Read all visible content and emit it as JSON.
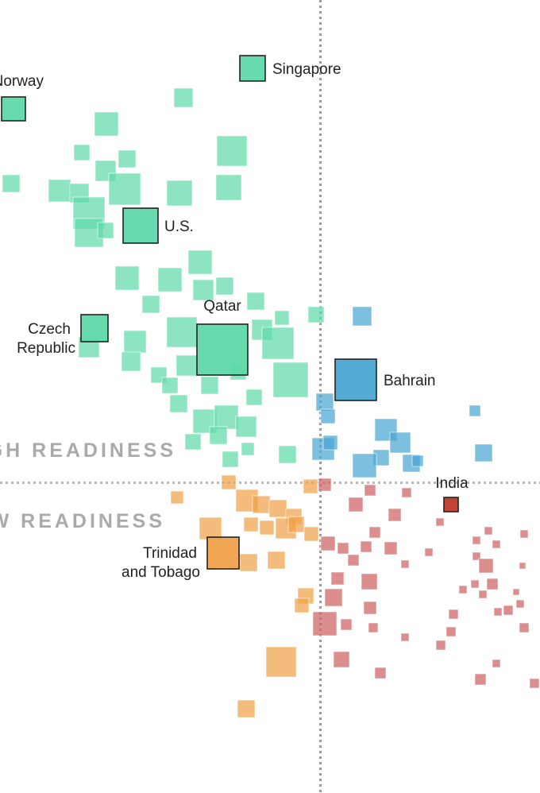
{
  "chart_data": {
    "type": "scatter",
    "marker": "square",
    "grid": false,
    "reference_lines": {
      "x": 0,
      "y": 0,
      "style": "dotted",
      "color": "#9a9a9a"
    },
    "quadrant_labels": [
      "HIGH READINESS",
      "LOW READINESS"
    ],
    "colors": {
      "green": "#5fd9a9",
      "blue": "#4aa6d1",
      "orange": "#f0a24a",
      "red": "#cf6363",
      "india": "#c0392b"
    },
    "highlighted": [
      {
        "label": "Norway",
        "group": "green",
        "x": -386,
        "y": 470,
        "s": 30
      },
      {
        "label": "Singapore",
        "group": "green",
        "x": -85,
        "y": 521,
        "s": 32
      },
      {
        "label": "U.S.",
        "group": "green",
        "x": -226,
        "y": 323,
        "s": 44
      },
      {
        "label": "Czech Republic",
        "group": "green",
        "x": -284,
        "y": 194,
        "s": 34
      },
      {
        "label": "Qatar",
        "group": "green",
        "x": -123,
        "y": 167,
        "s": 64
      },
      {
        "label": "Bahrain",
        "group": "blue",
        "x": 45,
        "y": 129,
        "s": 52
      },
      {
        "label": "India",
        "group": "india",
        "x": 165,
        "y": -28,
        "s": 18
      },
      {
        "label": "Trinidad and Tobago",
        "group": "orange",
        "x": -122,
        "y": -89,
        "s": 40
      }
    ],
    "points": {
      "green": [
        [
          -172,
          484,
          24
        ],
        [
          -269,
          451,
          30
        ],
        [
          -300,
          415,
          20
        ],
        [
          -243,
          407,
          22
        ],
        [
          -270,
          392,
          26
        ],
        [
          -111,
          417,
          38
        ],
        [
          -389,
          376,
          22
        ],
        [
          -328,
          367,
          28
        ],
        [
          -303,
          364,
          24
        ],
        [
          -246,
          369,
          40
        ],
        [
          -177,
          364,
          32
        ],
        [
          -115,
          371,
          32
        ],
        [
          -291,
          339,
          40
        ],
        [
          -291,
          314,
          36
        ],
        [
          -270,
          317,
          20
        ],
        [
          -151,
          277,
          30
        ],
        [
          -243,
          257,
          30
        ],
        [
          -189,
          255,
          30
        ],
        [
          -147,
          242,
          26
        ],
        [
          -120,
          247,
          22
        ],
        [
          -213,
          224,
          22
        ],
        [
          -81,
          228,
          22
        ],
        [
          -174,
          189,
          38
        ],
        [
          -233,
          177,
          28
        ],
        [
          -291,
          170,
          26
        ],
        [
          -238,
          152,
          24
        ],
        [
          -203,
          135,
          20
        ],
        [
          -189,
          122,
          20
        ],
        [
          -73,
          192,
          26
        ],
        [
          -48,
          207,
          18
        ],
        [
          -53,
          175,
          40
        ],
        [
          -37,
          129,
          44
        ],
        [
          -139,
          122,
          22
        ],
        [
          -103,
          139,
          20
        ],
        [
          -168,
          147,
          26
        ],
        [
          -83,
          107,
          20
        ],
        [
          -178,
          99,
          22
        ],
        [
          -145,
          77,
          30
        ],
        [
          -118,
          82,
          30
        ],
        [
          -93,
          70,
          26
        ],
        [
          -128,
          59,
          22
        ],
        [
          -160,
          51,
          20
        ],
        [
          -91,
          42,
          16
        ],
        [
          -113,
          29,
          20
        ],
        [
          -41,
          35,
          22
        ],
        [
          -5,
          211,
          20
        ]
      ],
      "blue": [
        [
          53,
          209,
          24
        ],
        [
          6,
          101,
          22
        ],
        [
          10,
          83,
          18
        ],
        [
          83,
          66,
          28
        ],
        [
          101,
          50,
          26
        ],
        [
          4,
          42,
          28
        ],
        [
          77,
          31,
          20
        ],
        [
          56,
          21,
          30
        ],
        [
          115,
          24,
          22
        ],
        [
          123,
          27,
          14
        ],
        [
          195,
          90,
          14
        ],
        [
          206,
          37,
          22
        ],
        [
          13,
          50,
          18
        ]
      ],
      "orange": [
        [
          -180,
          -19,
          16
        ],
        [
          -115,
          0,
          18
        ],
        [
          -12,
          -5,
          18
        ],
        [
          -92,
          -23,
          28
        ],
        [
          -74,
          -28,
          22
        ],
        [
          -53,
          -33,
          22
        ],
        [
          -33,
          -43,
          20
        ],
        [
          -87,
          -53,
          18
        ],
        [
          -67,
          -57,
          18
        ],
        [
          -43,
          -58,
          26
        ],
        [
          -30,
          -53,
          20
        ],
        [
          -11,
          -65,
          18
        ],
        [
          -138,
          -58,
          28
        ],
        [
          -90,
          -101,
          22
        ],
        [
          -55,
          -98,
          22
        ],
        [
          -18,
          -143,
          20
        ],
        [
          -23,
          -155,
          18
        ],
        [
          -49,
          -226,
          38
        ],
        [
          -93,
          -285,
          22
        ]
      ],
      "red": [
        [
          6,
          -3,
          16
        ],
        [
          45,
          -28,
          18
        ],
        [
          63,
          -10,
          14
        ],
        [
          94,
          -41,
          16
        ],
        [
          109,
          -13,
          12
        ],
        [
          151,
          -50,
          10
        ],
        [
          10,
          -77,
          18
        ],
        [
          29,
          -83,
          14
        ],
        [
          42,
          -98,
          14
        ],
        [
          58,
          -81,
          14
        ],
        [
          69,
          -63,
          14
        ],
        [
          89,
          -83,
          16
        ],
        [
          107,
          -103,
          10
        ],
        [
          22,
          -121,
          16
        ],
        [
          62,
          -125,
          20
        ],
        [
          17,
          -145,
          22
        ],
        [
          33,
          -179,
          14
        ],
        [
          6,
          -178,
          30
        ],
        [
          63,
          -158,
          16
        ],
        [
          67,
          -183,
          12
        ],
        [
          27,
          -223,
          20
        ],
        [
          76,
          -240,
          14
        ],
        [
          107,
          -195,
          10
        ],
        [
          152,
          -205,
          12
        ],
        [
          165,
          -188,
          12
        ],
        [
          168,
          -166,
          12
        ],
        [
          197,
          -73,
          10
        ],
        [
          212,
          -61,
          10
        ],
        [
          222,
          -78,
          10
        ],
        [
          197,
          -93,
          10
        ],
        [
          209,
          -105,
          18
        ],
        [
          217,
          -128,
          14
        ],
        [
          195,
          -128,
          10
        ],
        [
          205,
          -141,
          10
        ],
        [
          224,
          -163,
          10
        ],
        [
          237,
          -161,
          12
        ],
        [
          252,
          -153,
          10
        ],
        [
          257,
          -183,
          12
        ],
        [
          247,
          -138,
          8
        ],
        [
          180,
          -135,
          10
        ],
        [
          257,
          -65,
          10
        ],
        [
          202,
          -248,
          14
        ],
        [
          270,
          -253,
          12
        ],
        [
          222,
          -228,
          10
        ],
        [
          137,
          -88,
          10
        ],
        [
          255,
          -105,
          8
        ]
      ]
    }
  }
}
